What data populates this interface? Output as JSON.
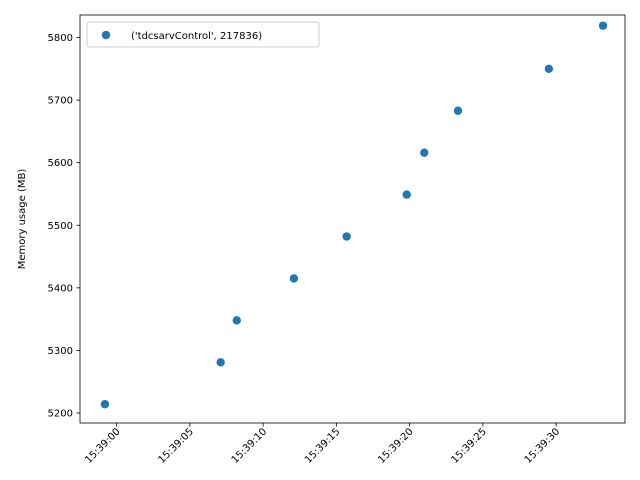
{
  "chart_data": {
    "type": "scatter",
    "title": "",
    "xlabel": "",
    "ylabel": "Memory usage (MB)",
    "x_ticks": [
      "15:39:00",
      "15:39:05",
      "15:39:10",
      "15:39:15",
      "15:39:20",
      "15:39:25",
      "15:39:30"
    ],
    "y_ticks": [
      5200,
      5300,
      5400,
      5500,
      5600,
      5700,
      5800
    ],
    "x_range": [
      "15:38:57.5",
      "15:39:34.7"
    ],
    "ylim": [
      5184,
      5836
    ],
    "grid": false,
    "legend_position": "top-left",
    "series": [
      {
        "name": "('tdcsarvControl', 217836)",
        "color": "#1f77b4",
        "x": [
          "15:38:59.2",
          "15:39:07.1",
          "15:39:08.2",
          "15:39:12.1",
          "15:39:15.7",
          "15:39:19.8",
          "15:39:21.0",
          "15:39:23.3",
          "15:39:29.5",
          "15:39:33.2"
        ],
        "y": [
          5214,
          5281,
          5348,
          5415,
          5482,
          5549,
          5616,
          5683,
          5750,
          5819
        ]
      }
    ]
  }
}
